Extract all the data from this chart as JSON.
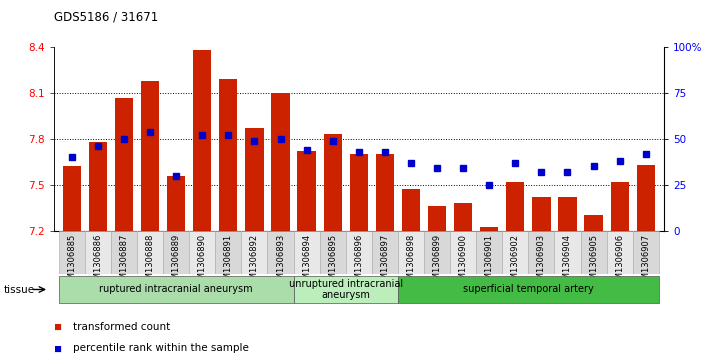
{
  "title": "GDS5186 / 31671",
  "samples": [
    "GSM1306885",
    "GSM1306886",
    "GSM1306887",
    "GSM1306888",
    "GSM1306889",
    "GSM1306890",
    "GSM1306891",
    "GSM1306892",
    "GSM1306893",
    "GSM1306894",
    "GSM1306895",
    "GSM1306896",
    "GSM1306897",
    "GSM1306898",
    "GSM1306899",
    "GSM1306900",
    "GSM1306901",
    "GSM1306902",
    "GSM1306903",
    "GSM1306904",
    "GSM1306905",
    "GSM1306906",
    "GSM1306907"
  ],
  "bar_values": [
    7.62,
    7.78,
    8.07,
    8.18,
    7.56,
    8.38,
    8.19,
    7.87,
    8.1,
    7.72,
    7.83,
    7.7,
    7.7,
    7.47,
    7.36,
    7.38,
    7.22,
    7.52,
    7.42,
    7.42,
    7.3,
    7.52,
    7.63
  ],
  "dot_values_pct": [
    40,
    46,
    50,
    54,
    30,
    52,
    52,
    49,
    50,
    44,
    49,
    43,
    43,
    37,
    34,
    34,
    25,
    37,
    32,
    32,
    35,
    38,
    42
  ],
  "bar_color": "#cc2200",
  "dot_color": "#0000cc",
  "ylim_left": [
    7.2,
    8.4
  ],
  "ylim_right": [
    0,
    100
  ],
  "yticks_left": [
    7.2,
    7.5,
    7.8,
    8.1,
    8.4
  ],
  "yticks_right": [
    0,
    25,
    50,
    75,
    100
  ],
  "ytick_labels_right": [
    "0",
    "25",
    "50",
    "75",
    "100%"
  ],
  "grid_lines": [
    7.5,
    7.8,
    8.1
  ],
  "groups": [
    {
      "label": "ruptured intracranial aneurysm",
      "start": 0,
      "end": 9,
      "color": "#aaddaa"
    },
    {
      "label": "unruptured intracranial\naneurysm",
      "start": 9,
      "end": 13,
      "color": "#bbeeaa"
    },
    {
      "label": "superficial temporal artery",
      "start": 13,
      "end": 23,
      "color": "#44cc44"
    }
  ],
  "tissue_label": "tissue",
  "legend_bar_label": "transformed count",
  "legend_dot_label": "percentile rank within the sample",
  "plot_bg": "#ffffff"
}
